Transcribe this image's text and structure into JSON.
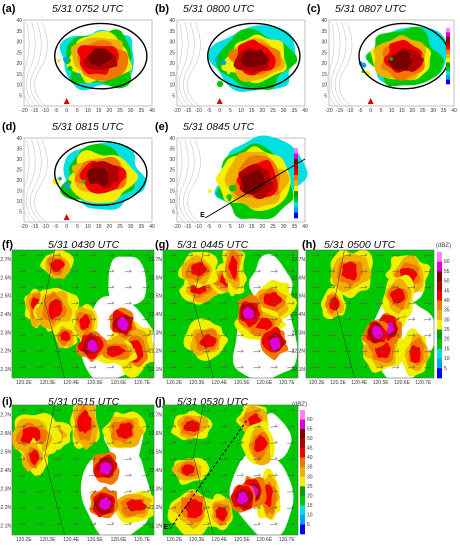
{
  "panels_top": [
    {
      "id": "a",
      "label": "(a)",
      "time": "5/31 0752 UTC"
    },
    {
      "id": "b",
      "label": "(b)",
      "time": "5/31 0800 UTC"
    },
    {
      "id": "c",
      "label": "(c)",
      "time": "5/31 0807 UTC"
    },
    {
      "id": "d",
      "label": "(d)",
      "time": "5/31 0815 UTC"
    },
    {
      "id": "e",
      "label": "(e)",
      "time": "5/31 0845 UTC"
    }
  ],
  "panels_bottom": [
    {
      "id": "f",
      "label": "(f)",
      "time": "5/31 0430 UTC"
    },
    {
      "id": "g",
      "label": "(g)",
      "time": "5/31 0445 UTC"
    },
    {
      "id": "h",
      "label": "(h)",
      "time": "5/31 0500 UTC"
    },
    {
      "id": "i",
      "label": "(i)",
      "time": "5/31 0515 UTC"
    },
    {
      "id": "j",
      "label": "(j)",
      "time": "5/31 0530 UTC"
    }
  ],
  "top_axes": {
    "x_ticks": [
      "-20",
      "-15",
      "-10",
      "-5",
      "0",
      "5",
      "10",
      "15",
      "20",
      "25",
      "30",
      "35",
      "40"
    ],
    "y_ticks": [
      "5",
      "10",
      "15",
      "20",
      "25",
      "30",
      "35",
      "40"
    ]
  },
  "bottom_axes": {
    "x_ticks": [
      "120.2E",
      "120.3E",
      "120.4E",
      "120.5E",
      "120.6E",
      "120.7E"
    ],
    "y_ticks": [
      "22.1N",
      "22.2N",
      "22.3N",
      "22.4N",
      "22.5N",
      "22.6N",
      "22.7N"
    ]
  },
  "unit_label": "(dBZ)",
  "cbar_values": [
    "60",
    "55",
    "50",
    "45",
    "40",
    "35",
    "30",
    "25",
    "20",
    "15",
    "10",
    "5"
  ],
  "section_labels": {
    "e_line": "E",
    "j_line": "E'"
  },
  "colors": {
    "c1": "#0000f0",
    "c2": "#00a0ff",
    "c3": "#00e0e0",
    "c4": "#00c800",
    "c5": "#00a000",
    "c6": "#f0f000",
    "c7": "#f0b000",
    "c8": "#f07800",
    "c9": "#f00000",
    "c10": "#b00000",
    "c11": "#780000",
    "c12": "#e000e0",
    "c13": "#ff80ff"
  }
}
